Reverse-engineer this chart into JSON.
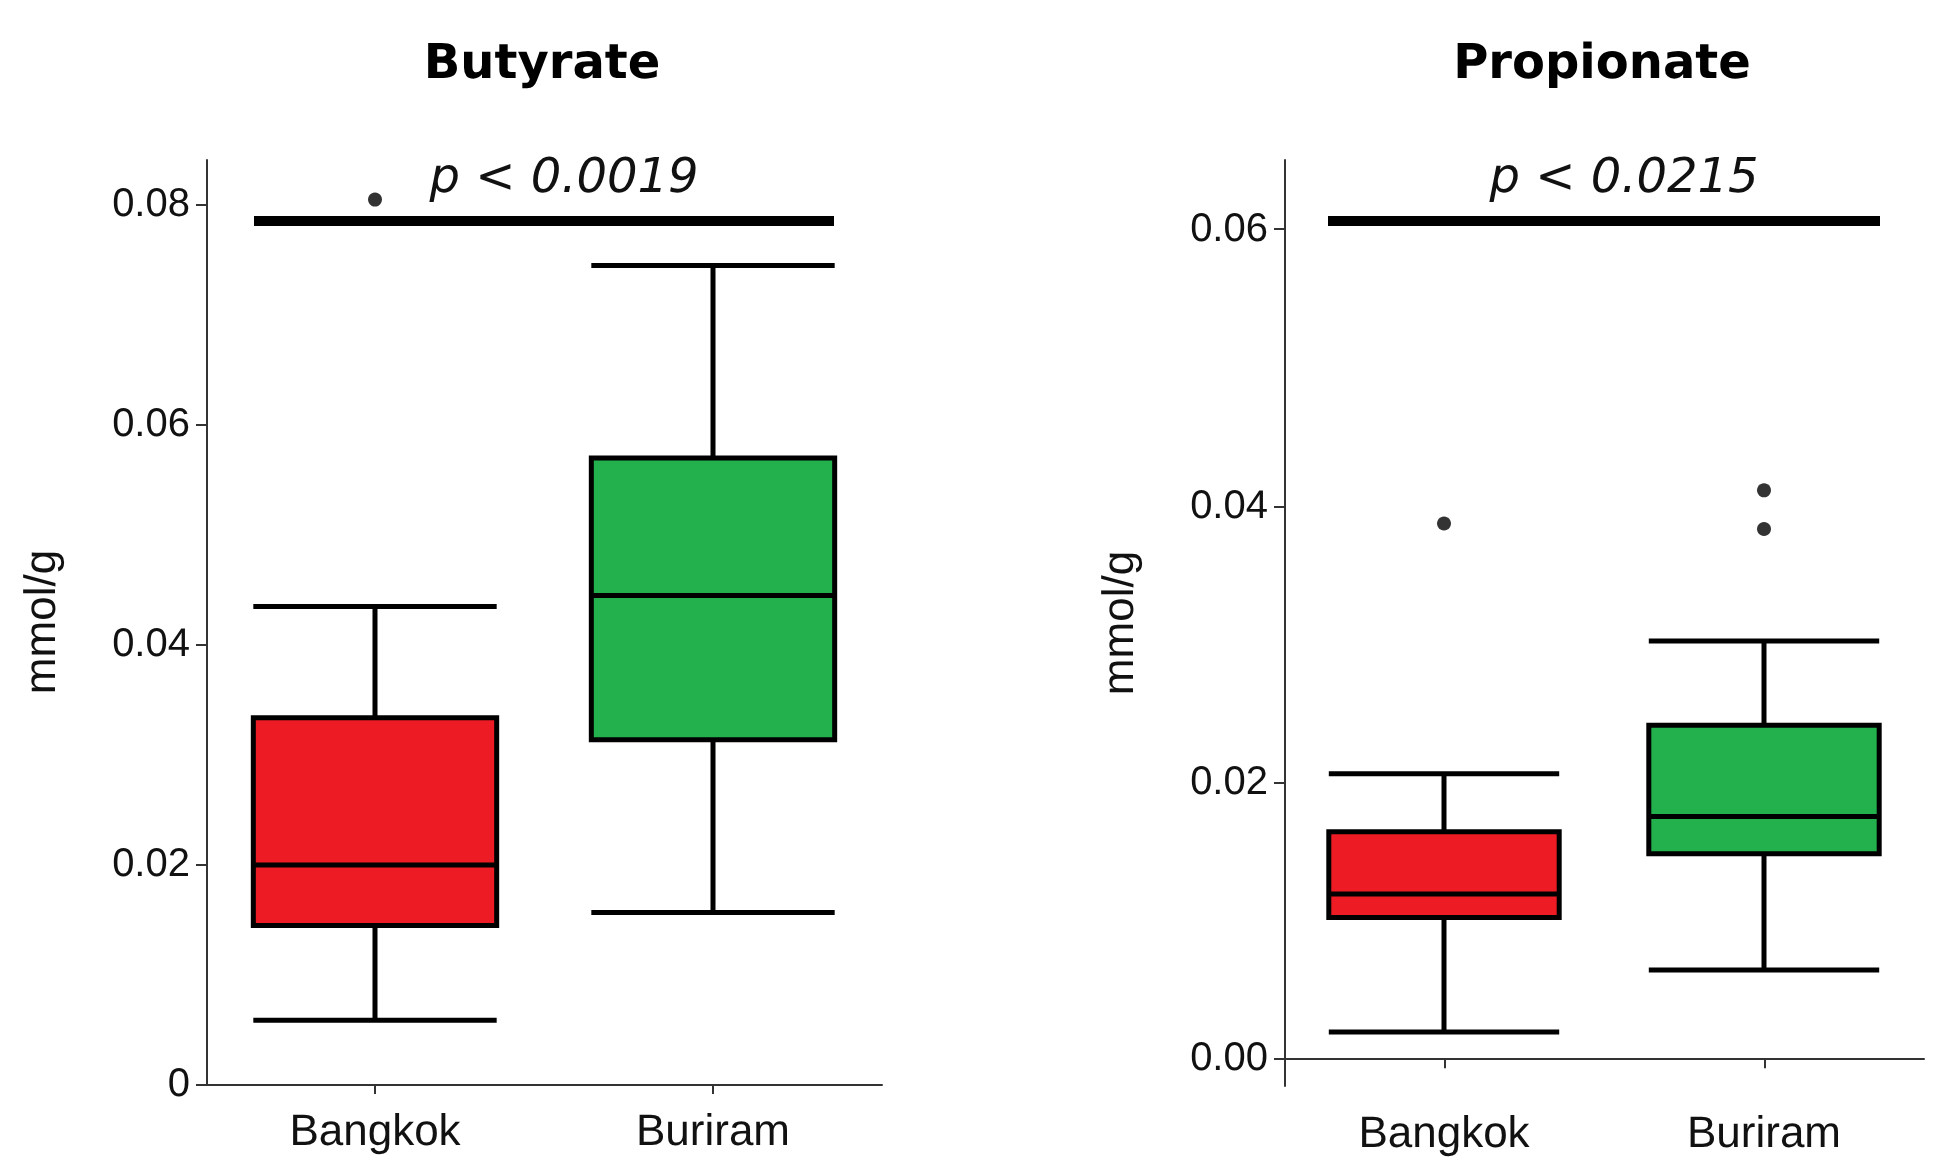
{
  "chart_data": [
    {
      "type": "box",
      "title": "Butyrate",
      "ylabel": "mmol/g",
      "categories": [
        "Bangkok",
        "Buriram"
      ],
      "colors": [
        "#ed1c24",
        "#22b14c"
      ],
      "boxes": [
        {
          "low": 0.0058,
          "q1": 0.0144,
          "median": 0.0199,
          "q3": 0.0333,
          "high": 0.0434,
          "outliers": [
            0.0804
          ]
        },
        {
          "low": 0.0156,
          "q1": 0.0313,
          "median": 0.0444,
          "q3": 0.0569,
          "high": 0.0744
        }
      ],
      "ylim": [
        0,
        0.084
      ],
      "yticks": [
        0,
        0.02,
        0.04,
        0.06,
        0.08
      ],
      "grid": false,
      "annotations": [
        "p < 0.0019"
      ]
    },
    {
      "type": "box",
      "title": "Propionate",
      "ylabel": "mmol/g",
      "categories": [
        "Bangkok",
        "Buriram"
      ],
      "colors": [
        "#ed1c24",
        "#22b14c"
      ],
      "boxes": [
        {
          "low": 0.0019,
          "q1": 0.0102,
          "median": 0.0119,
          "q3": 0.0164,
          "high": 0.0206,
          "outliers": [
            0.0387
          ]
        },
        {
          "low": 0.0064,
          "q1": 0.0148,
          "median": 0.0175,
          "q3": 0.0241,
          "high": 0.0302,
          "outliers": [
            0.0411,
            0.0383
          ]
        }
      ],
      "ylim": [
        -0.002,
        0.065
      ],
      "yticks": [
        "0.00",
        0.02,
        0.04,
        0.06
      ],
      "grid": false,
      "annotations": [
        "p < 0.0215"
      ]
    }
  ]
}
